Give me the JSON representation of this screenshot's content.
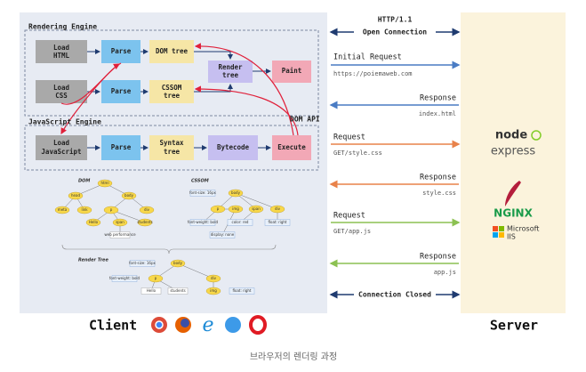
{
  "client": {
    "rendering_engine": {
      "title": "Rendering Engine",
      "load_html": [
        "Load",
        "HTML"
      ],
      "parse_html": "Parse",
      "dom_tree": "DOM tree",
      "render_tree": [
        "Render",
        "tree"
      ],
      "paint": "Paint",
      "load_css": [
        "Load",
        "CSS"
      ],
      "parse_css": "Parse",
      "cssom_tree": [
        "CSSOM",
        "tree"
      ]
    },
    "dom_api": "DOM API",
    "javascript_engine": {
      "title": "JavaScript Engine",
      "load_js": [
        "Load",
        "JavaScript"
      ],
      "parse": "Parse",
      "syntax_tree": [
        "Syntax",
        "tree"
      ],
      "bytecode": "Bytecode",
      "execute": "Execute"
    },
    "trees": {
      "dom_title": "DOM",
      "cssom_title": "CSSOM",
      "render_title": "Render Tree",
      "dom_nodes": [
        "html",
        "head",
        "body",
        "meta",
        "link",
        "p",
        "div",
        "Hello",
        "span",
        "students",
        "web performance"
      ],
      "cssom_nodes": [
        "font-size: 16px",
        "body",
        "p",
        "span",
        "div",
        "img",
        "font-weight: bold",
        "color: red",
        "float: right",
        "display: none"
      ],
      "render_nodes": [
        "font-size: 16px",
        "body",
        "p",
        "div",
        "font-weight: bold",
        "Hello",
        "students",
        "img",
        "float: right"
      ]
    },
    "label": "Client"
  },
  "messages": {
    "open": [
      "HTTP/1.1",
      "Open Connection"
    ],
    "initial_request": {
      "title": "Initial Request",
      "detail": "https://poiemaweb.com"
    },
    "response_html": {
      "title": "Response",
      "detail": "index.html"
    },
    "request_css": {
      "title": "Request",
      "detail": "GET/style.css"
    },
    "response_css": {
      "title": "Response",
      "detail": "style.css"
    },
    "request_js": {
      "title": "Request",
      "detail": "GET/app.js"
    },
    "response_js": {
      "title": "Response",
      "detail": "app.js"
    },
    "closed": "Connection Closed"
  },
  "server": {
    "node": "node",
    "express": "express",
    "nginx": "NGINX",
    "iis": [
      "Microsoft",
      "IIS"
    ],
    "label": "Server"
  },
  "caption": "브라우저의 렌더링 과정"
}
